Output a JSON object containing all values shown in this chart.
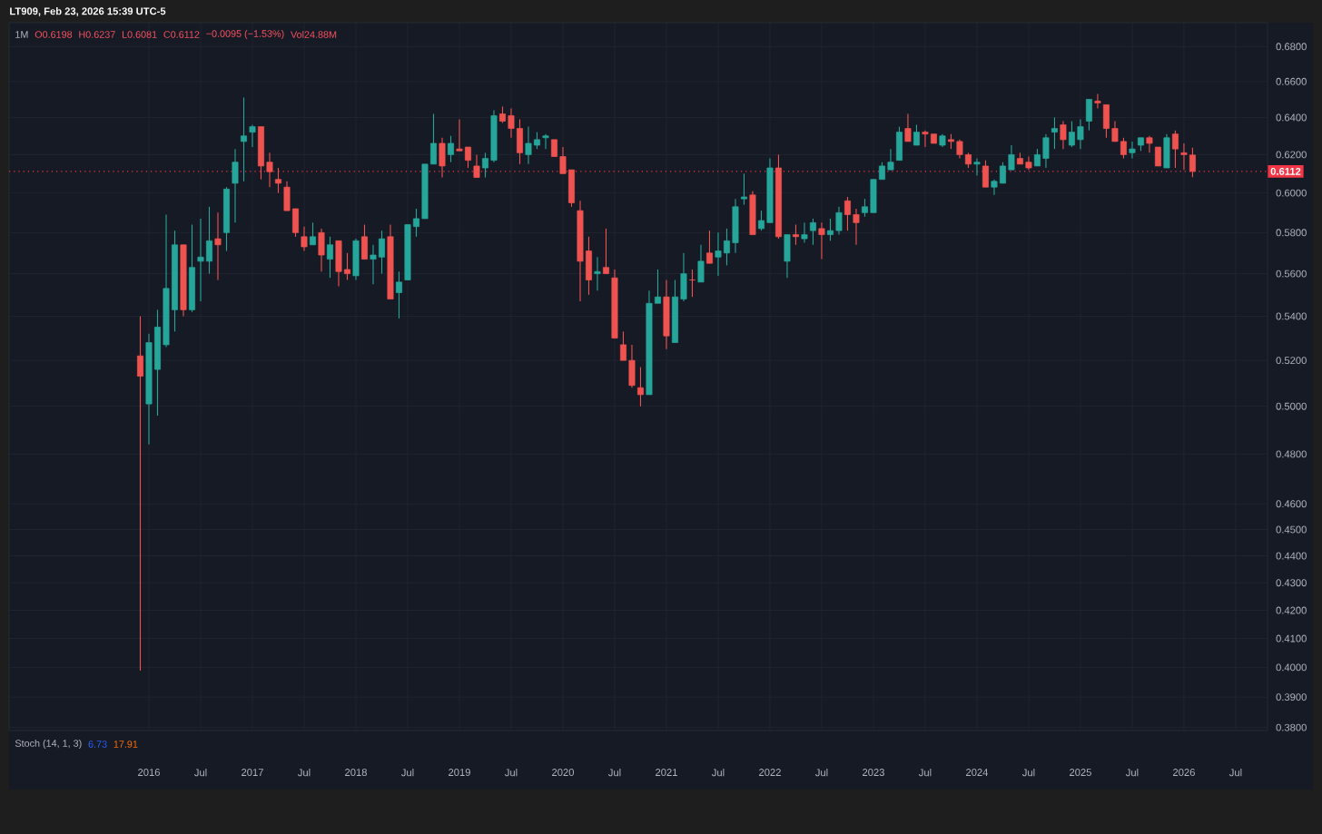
{
  "chart_data": {
    "type": "candlestick",
    "title": "1M",
    "annotations": [
      "LT909, Feb 23, 2026 15:39 UTC-5",
      "O0.6198",
      "H0.6237",
      "L0.6081",
      "C0.6112",
      "−0.0095 (−1.53%)",
      "Vol24.88M",
      "Stoch (14, 1, 3)",
      "6.73",
      "17.91"
    ],
    "x": [
      "2015-12",
      "2016-01",
      "2016-02",
      "2016-03",
      "2016-04",
      "2016-05",
      "2016-06",
      "2016-07",
      "2016-08",
      "2016-09",
      "2016-10",
      "2016-11",
      "2016-12",
      "2017-01",
      "2017-02",
      "2017-03",
      "2017-04",
      "2017-05",
      "2017-06",
      "2017-07",
      "2017-08",
      "2017-09",
      "2017-10",
      "2017-11",
      "2017-12",
      "2018-01",
      "2018-02",
      "2018-03",
      "2018-04",
      "2018-05",
      "2018-06",
      "2018-07",
      "2018-08",
      "2018-09",
      "2018-10",
      "2018-11",
      "2018-12",
      "2019-01",
      "2019-02",
      "2019-03",
      "2019-04",
      "2019-05",
      "2019-06",
      "2019-07",
      "2019-08",
      "2019-09",
      "2019-10",
      "2019-11",
      "2019-12",
      "2020-01",
      "2020-02",
      "2020-03",
      "2020-04",
      "2020-05",
      "2020-06",
      "2020-07",
      "2020-08",
      "2020-09",
      "2020-10",
      "2020-11",
      "2020-12",
      "2021-01",
      "2021-02",
      "2021-03",
      "2021-04",
      "2021-05",
      "2021-06",
      "2021-07",
      "2021-08",
      "2021-09",
      "2021-10",
      "2021-11",
      "2021-12",
      "2022-01",
      "2022-02",
      "2022-03",
      "2022-04",
      "2022-05",
      "2022-06",
      "2022-07",
      "2022-08",
      "2022-09",
      "2022-10",
      "2022-11",
      "2022-12",
      "2023-01",
      "2023-02",
      "2023-03",
      "2023-04",
      "2023-05",
      "2023-06",
      "2023-07",
      "2023-08",
      "2023-09",
      "2023-10",
      "2023-11",
      "2023-12",
      "2024-01",
      "2024-02",
      "2024-03",
      "2024-04",
      "2024-05",
      "2024-06",
      "2024-07",
      "2024-08",
      "2024-09",
      "2024-10",
      "2024-11",
      "2024-12",
      "2025-01",
      "2025-02",
      "2025-03",
      "2025-04",
      "2025-05",
      "2025-06",
      "2025-07",
      "2025-08",
      "2025-09",
      "2025-10",
      "2025-11",
      "2025-12",
      "2026-01",
      "2026-02"
    ],
    "ohlc": [
      [
        0.522,
        0.54,
        0.399,
        0.513
      ],
      [
        0.501,
        0.532,
        0.484,
        0.528
      ],
      [
        0.516,
        0.543,
        0.496,
        0.535
      ],
      [
        0.527,
        0.589,
        0.526,
        0.553
      ],
      [
        0.543,
        0.581,
        0.533,
        0.574
      ],
      [
        0.574,
        0.574,
        0.54,
        0.543
      ],
      [
        0.543,
        0.584,
        0.542,
        0.563
      ],
      [
        0.566,
        0.587,
        0.547,
        0.568
      ],
      [
        0.566,
        0.593,
        0.56,
        0.576
      ],
      [
        0.577,
        0.59,
        0.557,
        0.574
      ],
      [
        0.58,
        0.603,
        0.571,
        0.602
      ],
      [
        0.605,
        0.623,
        0.585,
        0.616
      ],
      [
        0.627,
        0.651,
        0.606,
        0.63
      ],
      [
        0.632,
        0.636,
        0.624,
        0.635
      ],
      [
        0.635,
        0.635,
        0.607,
        0.614
      ],
      [
        0.616,
        0.621,
        0.603,
        0.611
      ],
      [
        0.607,
        0.613,
        0.6,
        0.605
      ],
      [
        0.603,
        0.606,
        0.591,
        0.591
      ],
      [
        0.592,
        0.592,
        0.578,
        0.58
      ],
      [
        0.578,
        0.583,
        0.571,
        0.573
      ],
      [
        0.574,
        0.585,
        0.574,
        0.578
      ],
      [
        0.58,
        0.582,
        0.561,
        0.569
      ],
      [
        0.567,
        0.578,
        0.558,
        0.574
      ],
      [
        0.576,
        0.576,
        0.554,
        0.561
      ],
      [
        0.562,
        0.57,
        0.557,
        0.56
      ],
      [
        0.559,
        0.577,
        0.557,
        0.576
      ],
      [
        0.578,
        0.584,
        0.567,
        0.567
      ],
      [
        0.567,
        0.574,
        0.555,
        0.569
      ],
      [
        0.568,
        0.581,
        0.56,
        0.577
      ],
      [
        0.578,
        0.584,
        0.548,
        0.548
      ],
      [
        0.551,
        0.561,
        0.539,
        0.556
      ],
      [
        0.557,
        0.584,
        0.557,
        0.584
      ],
      [
        0.583,
        0.592,
        0.578,
        0.587
      ],
      [
        0.587,
        0.615,
        0.587,
        0.615
      ],
      [
        0.615,
        0.642,
        0.615,
        0.626
      ],
      [
        0.626,
        0.629,
        0.608,
        0.614
      ],
      [
        0.62,
        0.63,
        0.616,
        0.626
      ],
      [
        0.623,
        0.639,
        0.622,
        0.622
      ],
      [
        0.624,
        0.624,
        0.613,
        0.617
      ],
      [
        0.614,
        0.62,
        0.608,
        0.608
      ],
      [
        0.613,
        0.621,
        0.608,
        0.618
      ],
      [
        0.617,
        0.644,
        0.616,
        0.641
      ],
      [
        0.642,
        0.646,
        0.637,
        0.638
      ],
      [
        0.641,
        0.645,
        0.629,
        0.634
      ],
      [
        0.634,
        0.639,
        0.615,
        0.621
      ],
      [
        0.62,
        0.635,
        0.615,
        0.626
      ],
      [
        0.625,
        0.632,
        0.623,
        0.628
      ],
      [
        0.629,
        0.631,
        0.623,
        0.63
      ],
      [
        0.628,
        0.628,
        0.619,
        0.619
      ],
      [
        0.619,
        0.624,
        0.61,
        0.61
      ],
      [
        0.612,
        0.612,
        0.593,
        0.595
      ],
      [
        0.591,
        0.596,
        0.547,
        0.566
      ],
      [
        0.571,
        0.578,
        0.55,
        0.557
      ],
      [
        0.56,
        0.568,
        0.552,
        0.561
      ],
      [
        0.563,
        0.582,
        0.56,
        0.56
      ],
      [
        0.558,
        0.562,
        0.53,
        0.53
      ],
      [
        0.527,
        0.533,
        0.52,
        0.52
      ],
      [
        0.52,
        0.527,
        0.508,
        0.509
      ],
      [
        0.508,
        0.517,
        0.5,
        0.505
      ],
      [
        0.505,
        0.552,
        0.505,
        0.546
      ],
      [
        0.546,
        0.562,
        0.546,
        0.549
      ],
      [
        0.549,
        0.557,
        0.525,
        0.531
      ],
      [
        0.528,
        0.557,
        0.528,
        0.549
      ],
      [
        0.548,
        0.57,
        0.547,
        0.56
      ],
      [
        0.557,
        0.562,
        0.549,
        0.557
      ],
      [
        0.556,
        0.574,
        0.556,
        0.566
      ],
      [
        0.57,
        0.581,
        0.565,
        0.565
      ],
      [
        0.568,
        0.58,
        0.559,
        0.571
      ],
      [
        0.57,
        0.582,
        0.564,
        0.576
      ],
      [
        0.575,
        0.597,
        0.57,
        0.593
      ],
      [
        0.597,
        0.61,
        0.594,
        0.598
      ],
      [
        0.599,
        0.601,
        0.579,
        0.579
      ],
      [
        0.582,
        0.591,
        0.581,
        0.586
      ],
      [
        0.585,
        0.618,
        0.585,
        0.613
      ],
      [
        0.613,
        0.62,
        0.577,
        0.578
      ],
      [
        0.566,
        0.579,
        0.558,
        0.579
      ],
      [
        0.579,
        0.584,
        0.574,
        0.578
      ],
      [
        0.577,
        0.585,
        0.575,
        0.579
      ],
      [
        0.581,
        0.587,
        0.574,
        0.585
      ],
      [
        0.582,
        0.585,
        0.567,
        0.579
      ],
      [
        0.579,
        0.587,
        0.576,
        0.581
      ],
      [
        0.581,
        0.593,
        0.579,
        0.59
      ],
      [
        0.596,
        0.598,
        0.581,
        0.589
      ],
      [
        0.589,
        0.592,
        0.574,
        0.585
      ],
      [
        0.59,
        0.597,
        0.588,
        0.593
      ],
      [
        0.59,
        0.607,
        0.59,
        0.607
      ],
      [
        0.607,
        0.616,
        0.607,
        0.614
      ],
      [
        0.612,
        0.623,
        0.612,
        0.616
      ],
      [
        0.617,
        0.635,
        0.617,
        0.632
      ],
      [
        0.634,
        0.642,
        0.627,
        0.627
      ],
      [
        0.625,
        0.636,
        0.625,
        0.632
      ],
      [
        0.632,
        0.633,
        0.624,
        0.631
      ],
      [
        0.631,
        0.631,
        0.626,
        0.626
      ],
      [
        0.625,
        0.631,
        0.624,
        0.63
      ],
      [
        0.628,
        0.631,
        0.623,
        0.627
      ],
      [
        0.627,
        0.628,
        0.618,
        0.62
      ],
      [
        0.62,
        0.621,
        0.613,
        0.615
      ],
      [
        0.615,
        0.618,
        0.609,
        0.616
      ],
      [
        0.614,
        0.617,
        0.603,
        0.603
      ],
      [
        0.603,
        0.607,
        0.599,
        0.606
      ],
      [
        0.605,
        0.616,
        0.605,
        0.614
      ],
      [
        0.612,
        0.625,
        0.612,
        0.62
      ],
      [
        0.618,
        0.621,
        0.615,
        0.615
      ],
      [
        0.616,
        0.619,
        0.612,
        0.613
      ],
      [
        0.614,
        0.623,
        0.614,
        0.62
      ],
      [
        0.618,
        0.631,
        0.613,
        0.629
      ],
      [
        0.632,
        0.64,
        0.623,
        0.634
      ],
      [
        0.636,
        0.638,
        0.623,
        0.628
      ],
      [
        0.625,
        0.638,
        0.624,
        0.632
      ],
      [
        0.628,
        0.639,
        0.623,
        0.635
      ],
      [
        0.638,
        0.65,
        0.633,
        0.65
      ],
      [
        0.649,
        0.653,
        0.645,
        0.648
      ],
      [
        0.647,
        0.647,
        0.629,
        0.634
      ],
      [
        0.634,
        0.638,
        0.627,
        0.627
      ],
      [
        0.627,
        0.629,
        0.618,
        0.62
      ],
      [
        0.621,
        0.627,
        0.618,
        0.623
      ],
      [
        0.625,
        0.629,
        0.622,
        0.629
      ],
      [
        0.629,
        0.63,
        0.621,
        0.626
      ],
      [
        0.624,
        0.624,
        0.614,
        0.614
      ],
      [
        0.613,
        0.631,
        0.613,
        0.629
      ],
      [
        0.631,
        0.633,
        0.613,
        0.623
      ],
      [
        0.621,
        0.626,
        0.612,
        0.62
      ],
      [
        0.6198,
        0.6237,
        0.6081,
        0.6112
      ]
    ],
    "colors": [
      "#ef5350",
      "#26a69a",
      "#26a69a",
      "#26a69a",
      "#26a69a",
      "#ef5350",
      "#26a69a",
      "#26a69a",
      "#26a69a",
      "#ef5350",
      "#26a69a",
      "#26a69a",
      "#26a69a",
      "#26a69a",
      "#ef5350",
      "#ef5350",
      "#ef5350",
      "#ef5350",
      "#ef5350",
      "#ef5350",
      "#26a69a",
      "#ef5350",
      "#26a69a",
      "#ef5350",
      "#ef5350",
      "#26a69a",
      "#ef5350",
      "#26a69a",
      "#26a69a",
      "#ef5350",
      "#26a69a",
      "#26a69a",
      "#26a69a",
      "#26a69a",
      "#26a69a",
      "#ef5350",
      "#26a69a",
      "#ef5350",
      "#ef5350",
      "#ef5350",
      "#26a69a",
      "#26a69a",
      "#ef5350",
      "#ef5350",
      "#ef5350",
      "#26a69a",
      "#26a69a",
      "#26a69a",
      "#ef5350",
      "#ef5350",
      "#ef5350",
      "#ef5350",
      "#ef5350",
      "#26a69a",
      "#ef5350",
      "#ef5350",
      "#ef5350",
      "#ef5350",
      "#ef5350",
      "#26a69a",
      "#26a69a",
      "#ef5350",
      "#26a69a",
      "#26a69a",
      "#ef5350",
      "#26a69a",
      "#ef5350",
      "#26a69a",
      "#26a69a",
      "#26a69a",
      "#26a69a",
      "#ef5350",
      "#26a69a",
      "#26a69a",
      "#ef5350",
      "#26a69a",
      "#ef5350",
      "#26a69a",
      "#26a69a",
      "#ef5350",
      "#26a69a",
      "#26a69a",
      "#ef5350",
      "#ef5350",
      "#26a69a",
      "#26a69a",
      "#26a69a",
      "#26a69a",
      "#26a69a",
      "#ef5350",
      "#26a69a",
      "#ef5350",
      "#ef5350",
      "#26a69a",
      "#ef5350",
      "#ef5350",
      "#ef5350",
      "#26a69a",
      "#ef5350",
      "#26a69a",
      "#26a69a",
      "#26a69a",
      "#ef5350",
      "#ef5350",
      "#26a69a",
      "#26a69a",
      "#26a69a",
      "#ef5350",
      "#26a69a",
      "#26a69a",
      "#26a69a",
      "#ef5350",
      "#ef5350",
      "#ef5350",
      "#ef5350",
      "#26a69a",
      "#26a69a",
      "#ef5350",
      "#ef5350",
      "#26a69a",
      "#ef5350",
      "#ef5350",
      "#ef5350"
    ],
    "log": "y",
    "grid": true,
    "xlim": [
      "2014-08-25",
      "2026-10-22"
    ],
    "ylim": [
      0.379,
      0.694
    ],
    "xticks": [
      {
        "value": "2016-01",
        "label": "2016"
      },
      {
        "value": "2016-07",
        "label": "Jul"
      },
      {
        "value": "2017-01",
        "label": "2017"
      },
      {
        "value": "2017-07",
        "label": "Jul"
      },
      {
        "value": "2018-01",
        "label": "2018"
      },
      {
        "value": "2018-07",
        "label": "Jul"
      },
      {
        "value": "2019-01",
        "label": "2019"
      },
      {
        "value": "2019-07",
        "label": "Jul"
      },
      {
        "value": "2020-01",
        "label": "2020"
      },
      {
        "value": "2020-07",
        "label": "Jul"
      },
      {
        "value": "2021-01",
        "label": "2021"
      },
      {
        "value": "2021-07",
        "label": "Jul"
      },
      {
        "value": "2022-01",
        "label": "2022"
      },
      {
        "value": "2022-07",
        "label": "Jul"
      },
      {
        "value": "2023-01",
        "label": "2023"
      },
      {
        "value": "2023-07",
        "label": "Jul"
      },
      {
        "value": "2024-01",
        "label": "2024"
      },
      {
        "value": "2024-07",
        "label": "Jul"
      },
      {
        "value": "2025-01",
        "label": "2025"
      },
      {
        "value": "2025-07",
        "label": "Jul"
      },
      {
        "value": "2026-01",
        "label": "2026"
      },
      {
        "value": "2026-07",
        "label": "Jul"
      }
    ],
    "yticks": [
      {
        "value": 0.68,
        "label": "0.6800"
      },
      {
        "value": 0.66,
        "label": "0.6600"
      },
      {
        "value": 0.64,
        "label": "0.6400"
      },
      {
        "value": 0.62,
        "label": "0.6200"
      },
      {
        "value": 0.6,
        "label": "0.6000"
      },
      {
        "value": 0.58,
        "label": "0.5800"
      },
      {
        "value": 0.56,
        "label": "0.5600"
      },
      {
        "value": 0.54,
        "label": "0.5400"
      },
      {
        "value": 0.52,
        "label": "0.5200"
      },
      {
        "value": 0.5,
        "label": "0.5000"
      },
      {
        "value": 0.48,
        "label": "0.4800"
      },
      {
        "value": 0.46,
        "label": "0.4600"
      },
      {
        "value": 0.45,
        "label": "0.4500"
      },
      {
        "value": 0.44,
        "label": "0.4400"
      },
      {
        "value": 0.43,
        "label": "0.4300"
      },
      {
        "value": 0.42,
        "label": "0.4200"
      },
      {
        "value": 0.41,
        "label": "0.4100"
      },
      {
        "value": 0.4,
        "label": "0.4000"
      },
      {
        "value": 0.39,
        "label": "0.3900"
      },
      {
        "value": 0.38,
        "label": "0.3800"
      }
    ],
    "ref_lines": [
      {
        "axis": "y",
        "value": 0.6112,
        "label": "0.6112",
        "color": "#f23645",
        "line_style": "dotted"
      }
    ]
  }
}
